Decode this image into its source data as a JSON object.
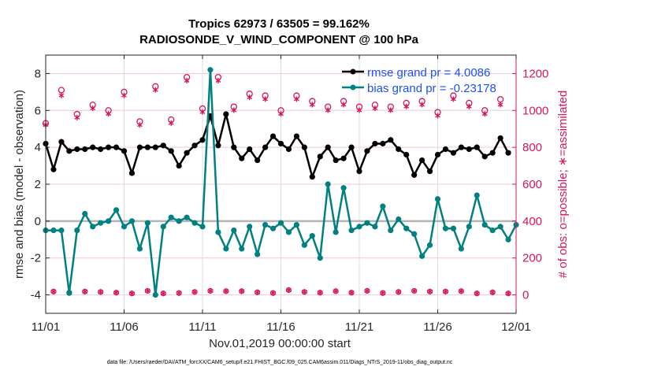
{
  "chart_data": {
    "type": "line",
    "title": [
      "Tropics 62973 / 63505 = 99.162%",
      "RADIOSONDE_V_WIND_COMPONENT @ 100 hPa"
    ],
    "xlabel": "Nov.01,2019 00:00:00 start",
    "ylabel": "rmse and bias (model - observation)",
    "ylabel_right": "# of obs: o=possible; ∗=assimilated",
    "footer": "data file: /Users/raeder/DAI/ATM_forcXX/CAM6_setup/f.e21.FHIST_BGC.f09_025.CAM6assim.011/Diags_NTrS_2019-11/obs_diag_output.nc",
    "x_unit": "days since Nov.01,2019 00:00:00",
    "xlim": [
      0,
      30
    ],
    "xticks": [
      0,
      5,
      10,
      15,
      20,
      25,
      30
    ],
    "xtick_labels": [
      "11/01",
      "11/06",
      "11/11",
      "11/16",
      "11/21",
      "11/26",
      "12/01"
    ],
    "ylim": [
      -5,
      9
    ],
    "yticks": [
      -4,
      -2,
      0,
      2,
      4,
      6,
      8
    ],
    "ylim_right": [
      -100,
      1300
    ],
    "yticks_right": [
      0,
      200,
      400,
      600,
      800,
      1000,
      1200
    ],
    "grid": true,
    "zero_line": 0,
    "legend_placement": "top-right",
    "colors": {
      "rmse": "#000000",
      "bias": "#008080",
      "obs": "#d6145f",
      "grid": "#f0c8d8",
      "legend_text": "#1a4fff",
      "zero": "#b4b4b4"
    },
    "series": [
      {
        "name": "rmse",
        "legend": "rmse grand pr = 4.0086",
        "values": [
          4.2,
          2.8,
          4.3,
          3.8,
          3.9,
          3.9,
          4.0,
          3.9,
          4.0,
          4.0,
          3.8,
          2.6,
          4.0,
          4.0,
          4.0,
          4.1,
          3.8,
          3.0,
          3.7,
          4.1,
          4.4,
          5.7,
          4.1,
          5.8,
          4.0,
          3.4,
          3.9,
          3.3,
          4.0,
          4.6,
          4.2,
          3.9,
          4.6,
          4.0,
          2.4,
          3.5,
          4.0,
          3.3,
          3.4,
          4.0,
          2.7,
          3.8,
          4.2,
          4.2,
          4.4,
          3.9,
          3.6,
          2.5,
          3.3,
          2.7,
          3.6,
          3.9,
          3.7,
          4.0,
          3.9,
          4.0,
          3.5,
          3.7,
          4.5,
          3.7
        ]
      },
      {
        "name": "bias",
        "legend": "bias grand pr = -0.23178",
        "values": [
          -0.5,
          -0.5,
          -0.5,
          -3.9,
          -0.5,
          0.4,
          -0.3,
          -0.1,
          0.0,
          0.6,
          -0.3,
          0.0,
          -1.5,
          -0.1,
          -4.0,
          -0.3,
          0.2,
          0.0,
          0.2,
          -0.1,
          -0.3,
          -0.6,
          -1.5,
          -0.5,
          -1.5,
          -0.3,
          -1.8,
          -0.2,
          -0.4,
          -0.1,
          -0.6,
          -0.2,
          -1.3,
          -0.8,
          -2.0,
          2.0,
          -0.6,
          1.8,
          -0.5,
          -0.3,
          -0.1,
          -0.3,
          0.8,
          -0.5,
          0.1,
          -0.4,
          -0.7,
          -1.9,
          -1.3,
          1.2,
          -0.4,
          -0.4,
          -1.5,
          -0.3,
          1.4,
          -0.2,
          -0.5,
          -0.3,
          -1.0,
          -0.2
        ]
      },
      {
        "name": "obs_possible",
        "marker": "o",
        "values": [
          930,
          1110,
          980,
          1030,
          1000,
          1100,
          940,
          1130,
          950,
          1180,
          1010,
          1180,
          1020,
          1090,
          1080,
          1000,
          1080,
          1050,
          1020,
          1050,
          1020,
          1030,
          1020,
          1040,
          1050,
          990,
          1080,
          1040,
          1000,
          1060
        ]
      },
      {
        "name": "obs_assimilated",
        "marker": "*",
        "values": [
          930,
          1090,
          970,
          1020,
          990,
          1090,
          930,
          1120,
          940,
          1170,
          1000,
          1170,
          1010,
          1080,
          1070,
          990,
          1070,
          1040,
          1010,
          1040,
          1010,
          1020,
          1010,
          1030,
          1040,
          980,
          1070,
          1030,
          990,
          1040
        ]
      },
      {
        "name": "obs_low",
        "marker": "*",
        "values": [
          18,
          12,
          18,
          16,
          12,
          8,
          22,
          8,
          10,
          16,
          22,
          20,
          20,
          14,
          10,
          26,
          16,
          12,
          20,
          12,
          22,
          10,
          16,
          22,
          18,
          18,
          20,
          8,
          14,
          8
        ]
      }
    ],
    "bias_spike": {
      "x": 10.5,
      "value": 8.2
    }
  }
}
